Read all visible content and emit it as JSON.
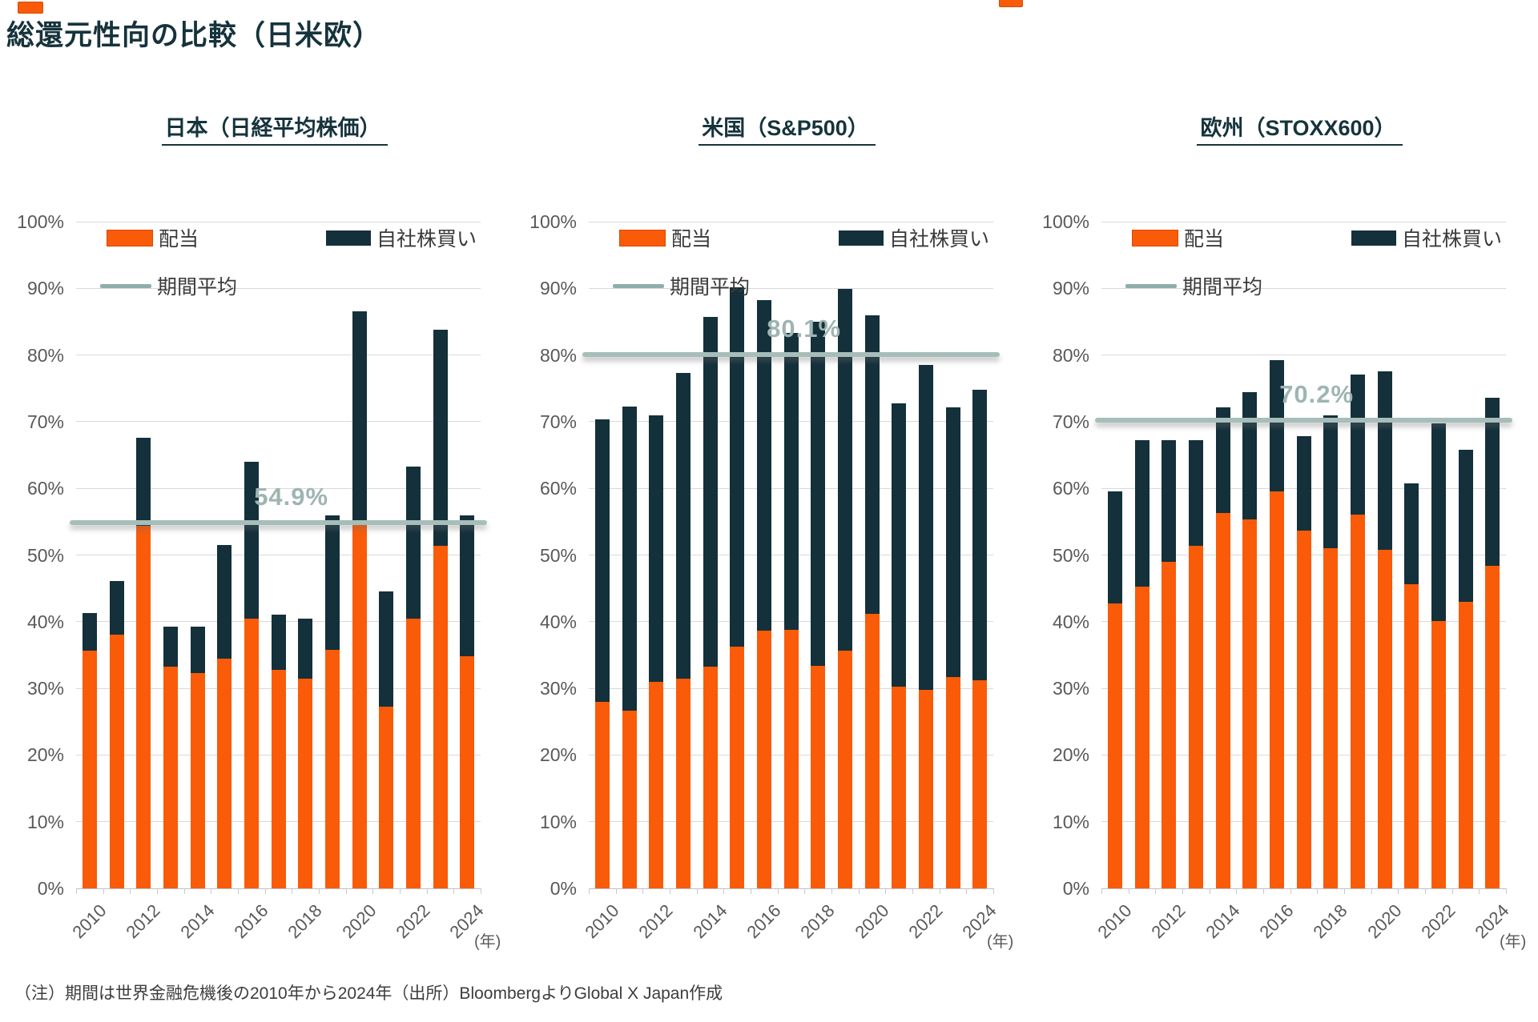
{
  "page": {
    "title": "総還元性向の比較（日米欧）",
    "footnote": "（注）期間は世界金融危機後の2010年から2024年（出所）BloombergよりGlobal X Japan作成"
  },
  "legend": {
    "dividend": "配当",
    "buyback": "自社株買い",
    "average": "期間平均"
  },
  "colors": {
    "dividend": "#F95B09",
    "buyback": "#14303A",
    "average_line": "#A7BDBA",
    "average_text": "#9EB5B2",
    "grid": "#D9D9D9",
    "axis_text": "#595959",
    "title_text": "#16333C"
  },
  "chart_data": [
    {
      "type": "bar",
      "stacked": true,
      "title": "日本（日経平均株価）",
      "categories": [
        "2010",
        "2011",
        "2012",
        "2013",
        "2014",
        "2015",
        "2016",
        "2017",
        "2018",
        "2019",
        "2020",
        "2021",
        "2022",
        "2023",
        "2024"
      ],
      "series": [
        {
          "name": "配当",
          "color_key": "dividend",
          "values": [
            35.7,
            38.1,
            54.4,
            33.2,
            32.3,
            34.5,
            40.5,
            32.8,
            31.5,
            35.8,
            54.5,
            27.2,
            40.4,
            51.4,
            34.8
          ]
        },
        {
          "name": "自社株買い",
          "color_key": "buyback",
          "values": [
            5.6,
            8.0,
            13.2,
            6.1,
            7.0,
            17.0,
            23.5,
            8.3,
            9.0,
            20.2,
            32.0,
            17.4,
            22.9,
            32.4,
            21.1
          ]
        }
      ],
      "average": 54.9,
      "average_label": "54.9%",
      "ylim": [
        0,
        100
      ],
      "y_tick_step": 10,
      "y_tick_suffix": "%",
      "grid": true,
      "legend_position": "top-inside",
      "x_shown_ticks": [
        "2010",
        "2012",
        "2014",
        "2016",
        "2018",
        "2020",
        "2022",
        "2024"
      ],
      "x_axis_unit": "(年)"
    },
    {
      "type": "bar",
      "stacked": true,
      "title": "米国（S&P500）",
      "categories": [
        "2010",
        "2011",
        "2012",
        "2013",
        "2014",
        "2015",
        "2016",
        "2017",
        "2018",
        "2019",
        "2020",
        "2021",
        "2022",
        "2023",
        "2024"
      ],
      "series": [
        {
          "name": "配当",
          "color_key": "dividend",
          "values": [
            28.0,
            26.7,
            31.0,
            31.4,
            33.2,
            36.3,
            38.6,
            38.8,
            33.4,
            35.7,
            41.2,
            30.2,
            29.8,
            31.7,
            31.2
          ]
        },
        {
          "name": "自社株買い",
          "color_key": "buyback",
          "values": [
            42.3,
            45.6,
            39.9,
            45.9,
            52.5,
            53.9,
            49.6,
            44.5,
            51.6,
            54.2,
            44.8,
            42.6,
            48.7,
            40.5,
            43.6
          ]
        }
      ],
      "average": 80.1,
      "average_label": "80.1%",
      "ylim": [
        0,
        100
      ],
      "y_tick_step": 10,
      "y_tick_suffix": "%",
      "grid": true,
      "legend_position": "top-inside",
      "x_shown_ticks": [
        "2010",
        "2012",
        "2014",
        "2016",
        "2018",
        "2020",
        "2022",
        "2024"
      ],
      "x_axis_unit": "(年)"
    },
    {
      "type": "bar",
      "stacked": true,
      "title": "欧州（STOXX600）",
      "categories": [
        "2010",
        "2011",
        "2012",
        "2013",
        "2014",
        "2015",
        "2016",
        "2017",
        "2018",
        "2019",
        "2020",
        "2021",
        "2022",
        "2023",
        "2024"
      ],
      "series": [
        {
          "name": "配当",
          "color_key": "dividend",
          "values": [
            42.7,
            45.3,
            49.0,
            51.4,
            56.3,
            55.4,
            59.5,
            53.7,
            51.0,
            56.1,
            50.8,
            45.6,
            40.1,
            43.0,
            48.4
          ]
        },
        {
          "name": "自社株買い",
          "color_key": "buyback",
          "values": [
            16.8,
            21.9,
            18.2,
            15.8,
            15.9,
            19.0,
            19.7,
            14.1,
            20.0,
            21.0,
            26.8,
            15.2,
            29.6,
            22.8,
            25.2
          ]
        }
      ],
      "average": 70.2,
      "average_label": "70.2%",
      "ylim": [
        0,
        100
      ],
      "y_tick_step": 10,
      "y_tick_suffix": "%",
      "grid": true,
      "legend_position": "top-inside",
      "x_shown_ticks": [
        "2010",
        "2012",
        "2014",
        "2016",
        "2018",
        "2020",
        "2022",
        "2024"
      ],
      "x_axis_unit": "(年)"
    }
  ]
}
